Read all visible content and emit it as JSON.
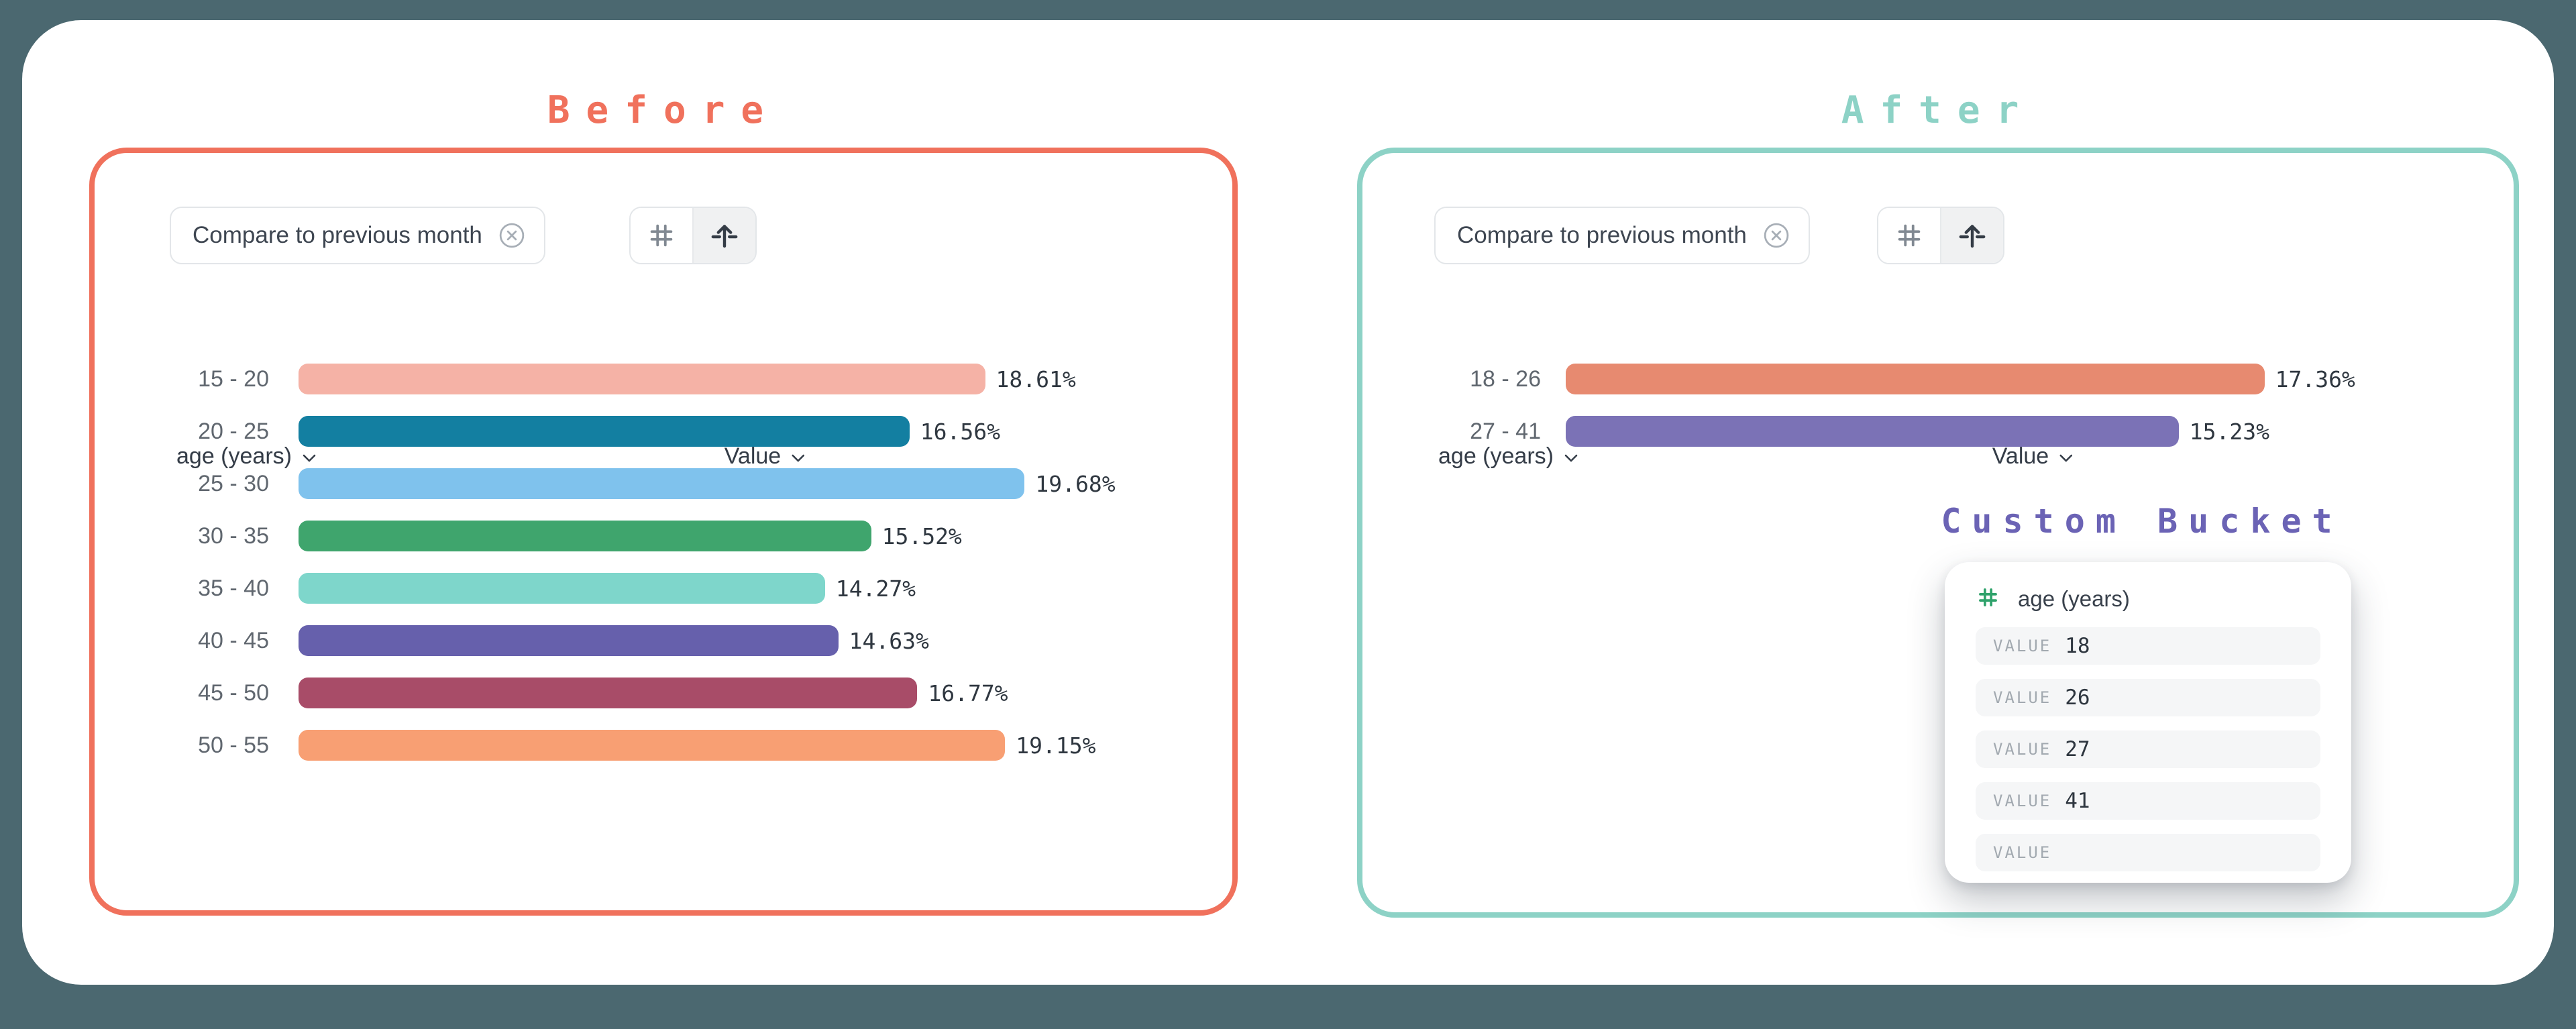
{
  "app": {
    "background_color": "#4B6870",
    "canvas_color": "#FFFFFF"
  },
  "before": {
    "title": "Before",
    "accent_color": "#F0715C",
    "chip": {
      "label": "Compare to previous month",
      "close_icon": "circled-x"
    },
    "toolbar": {
      "numeric_icon": "hash",
      "orientation_icon": "arrow-up-from-line"
    },
    "columns": {
      "dimension_label": "age (years)",
      "value_label": "Value"
    },
    "scale_max_pct": 20,
    "rows": [
      {
        "label": "15 - 20",
        "pct": 18.61,
        "pct_label": "18.61%",
        "color": "#F5B2A6"
      },
      {
        "label": "20 - 25",
        "pct": 16.56,
        "pct_label": "16.56%",
        "color": "#137FA1"
      },
      {
        "label": "25 - 30",
        "pct": 19.68,
        "pct_label": "19.68%",
        "color": "#7FC2ED"
      },
      {
        "label": "30 - 35",
        "pct": 15.52,
        "pct_label": "15.52%",
        "color": "#3FA56D"
      },
      {
        "label": "35 - 40",
        "pct": 14.27,
        "pct_label": "14.27%",
        "color": "#7ED6CB"
      },
      {
        "label": "40 - 45",
        "pct": 14.63,
        "pct_label": "14.63%",
        "color": "#6660AC"
      },
      {
        "label": "45 - 50",
        "pct": 16.77,
        "pct_label": "16.77%",
        "color": "#A84C68"
      },
      {
        "label": "50 - 55",
        "pct": 19.15,
        "pct_label": "19.15%",
        "color": "#F89F73"
      }
    ]
  },
  "after": {
    "title": "After",
    "accent_color": "#8DD2C6",
    "chip": {
      "label": "Compare to previous month",
      "close_icon": "circled-x"
    },
    "toolbar": {
      "numeric_icon": "hash",
      "orientation_icon": "arrow-up-from-line"
    },
    "columns": {
      "dimension_label": "age (years)",
      "value_label": "Value"
    },
    "scale_max_pct": 20,
    "rows": [
      {
        "label": "18 - 26",
        "pct": 17.36,
        "pct_label": "17.36%",
        "color": "#E78A70"
      },
      {
        "label": "27 - 41",
        "pct": 15.23,
        "pct_label": "15.23%",
        "color": "#7B72B6"
      }
    ],
    "custom_bucket": {
      "title": "Custom Bucket",
      "title_color": "#6B63B5",
      "hash_icon_color": "#2FA26B",
      "property_name": "age (years)",
      "field_label": "VALUE",
      "values": [
        "18",
        "26",
        "27",
        "41",
        ""
      ]
    }
  },
  "chart_data": [
    {
      "type": "bar",
      "orientation": "horizontal",
      "title": "Before",
      "categories": [
        "15 - 20",
        "20 - 25",
        "25 - 30",
        "30 - 35",
        "35 - 40",
        "40 - 45",
        "45 - 50",
        "50 - 55"
      ],
      "values": [
        18.61,
        16.56,
        19.68,
        15.52,
        14.27,
        14.63,
        16.77,
        19.15
      ],
      "unit": "%",
      "xlabel": "Value",
      "ylabel": "age (years)",
      "xlim": [
        0,
        20
      ],
      "grid": false,
      "data_labels": [
        "18.61%",
        "16.56%",
        "19.68%",
        "15.52%",
        "14.27%",
        "14.63%",
        "16.77%",
        "19.15%"
      ],
      "bar_colors": [
        "#F5B2A6",
        "#137FA1",
        "#7FC2ED",
        "#3FA56D",
        "#7ED6CB",
        "#6660AC",
        "#A84C68",
        "#F89F73"
      ]
    },
    {
      "type": "bar",
      "orientation": "horizontal",
      "title": "After",
      "categories": [
        "18 - 26",
        "27 - 41"
      ],
      "values": [
        17.36,
        15.23
      ],
      "unit": "%",
      "xlabel": "Value",
      "ylabel": "age (years)",
      "xlim": [
        0,
        20
      ],
      "grid": false,
      "data_labels": [
        "17.36%",
        "15.23%"
      ],
      "bar_colors": [
        "#E78A70",
        "#7B72B6"
      ]
    }
  ]
}
